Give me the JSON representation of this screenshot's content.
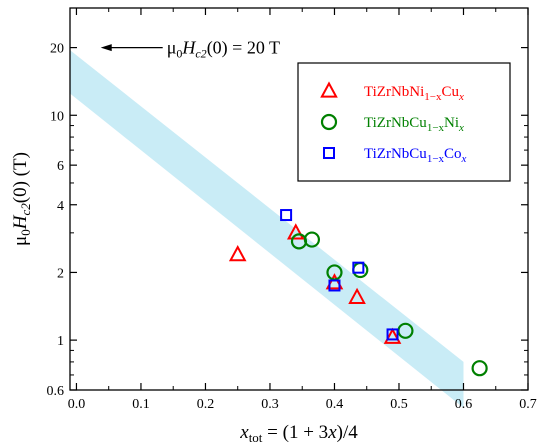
{
  "chart_data": {
    "type": "scatter",
    "title": "",
    "xlabel": "x_tot = (1 + 3x)/4",
    "ylabel": "μ0Hc2(0) (T)",
    "xlim": [
      -0.01,
      0.7
    ],
    "ylim": [
      0.6,
      30
    ],
    "yscale": "log",
    "grid": false,
    "legend_position": "upper-right",
    "x_ticks": [
      0.0,
      0.1,
      0.2,
      0.3,
      0.4,
      0.5,
      0.6,
      0.7
    ],
    "x_tick_labels": [
      "0.0",
      "0.1",
      "0.2",
      "0.3",
      "0.4",
      "0.5",
      "0.6",
      "0.7"
    ],
    "y_ticks": [
      0.6,
      1,
      2,
      4,
      6,
      10,
      20
    ],
    "y_tick_labels": [
      "0.6",
      "1",
      "2",
      "4",
      "6",
      "10",
      "20"
    ],
    "band": {
      "color": "#c9ecf6",
      "upper_line": [
        [
          -0.01,
          19.5
        ],
        [
          0.6,
          0.8
        ]
      ],
      "lower_line": [
        [
          -0.01,
          12.5
        ],
        [
          0.6,
          0.5
        ]
      ]
    },
    "annotation": {
      "text": "μ0Hc2(0) = 20 T",
      "arrow_tip": [
        0.05,
        20
      ]
    },
    "series": [
      {
        "name": "TiZrNbNi1-xCux",
        "marker": "triangle",
        "color": "#ff0000",
        "points": [
          [
            0.25,
            2.4
          ],
          [
            0.34,
            3.0
          ],
          [
            0.4,
            1.8
          ],
          [
            0.435,
            1.55
          ],
          [
            0.49,
            1.03
          ]
        ]
      },
      {
        "name": "TiZrNbCu1-xNix",
        "marker": "circle",
        "color": "#008000",
        "points": [
          [
            0.345,
            2.75
          ],
          [
            0.365,
            2.8
          ],
          [
            0.4,
            2.0
          ],
          [
            0.44,
            2.05
          ],
          [
            0.51,
            1.1
          ],
          [
            0.625,
            0.75
          ]
        ]
      },
      {
        "name": "TiZrNbCu1-xCox",
        "marker": "square",
        "color": "#0000ff",
        "points": [
          [
            0.325,
            3.6
          ],
          [
            0.4,
            1.75
          ],
          [
            0.437,
            2.1
          ],
          [
            0.49,
            1.06
          ]
        ]
      }
    ]
  }
}
